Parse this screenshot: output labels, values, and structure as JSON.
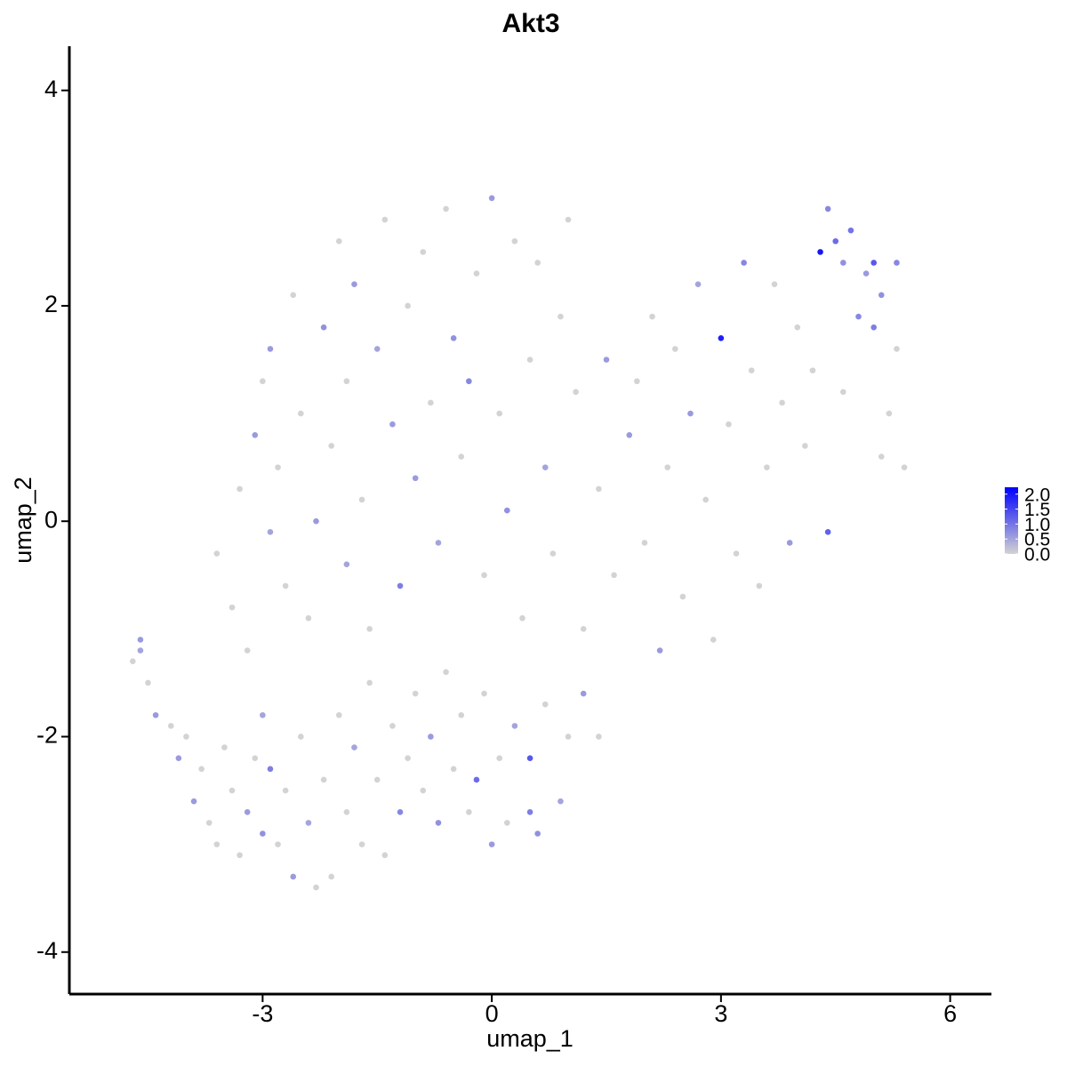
{
  "chart_data": {
    "type": "scatter",
    "title": "Akt3",
    "x_label": "umap_1",
    "y_label": "umap_2",
    "xlim": [
      -5.53,
      6.54
    ],
    "ylim": [
      -4.39,
      4.41
    ],
    "xticks": [
      -3,
      0,
      3,
      6
    ],
    "yticks": [
      -4,
      -2,
      0,
      2,
      4
    ],
    "color_low": "#d3d3d3",
    "color_high": "#0000ff",
    "colorlim": [
      0,
      2.23
    ],
    "colorbar_ticks": [
      {
        "value": 0,
        "label": "0.0"
      },
      0.5,
      {
        "value": 1,
        "label": "1.0"
      },
      1.5,
      {
        "value": 2,
        "label": "2.0"
      }
    ],
    "x": [
      -4.7,
      -4.6,
      -4.6,
      -4.5,
      -4.4,
      -4.2,
      -4.1,
      -4.0,
      -3.9,
      -3.8,
      -3.7,
      -3.6,
      -3.5,
      -3.4,
      -3.3,
      -3.2,
      -3.1,
      -3.0,
      -3.0,
      -2.9,
      -2.8,
      -2.7,
      -2.6,
      -2.5,
      -2.4,
      -2.3,
      -2.2,
      -2.1,
      -2.0,
      -1.9,
      -1.8,
      -1.7,
      -1.6,
      -1.5,
      -1.4,
      -1.3,
      -1.2,
      -1.1,
      -1.0,
      -0.9,
      -0.8,
      -0.7,
      -0.6,
      -0.5,
      -0.4,
      -0.3,
      -0.2,
      -0.1,
      0.0,
      0.1,
      0.2,
      0.3,
      0.5,
      0.5,
      0.6,
      0.7,
      0.9,
      1.0,
      1.2,
      1.4,
      -3.6,
      -3.4,
      -3.3,
      -3.2,
      -3.1,
      -3.0,
      -2.9,
      -2.9,
      -2.8,
      -2.7,
      -2.6,
      -2.5,
      -2.4,
      -2.3,
      -2.2,
      -2.1,
      -2.0,
      -1.9,
      -1.9,
      -1.8,
      -1.7,
      -1.6,
      -1.5,
      -1.4,
      -1.3,
      -1.2,
      -1.1,
      -1.0,
      -0.9,
      -0.8,
      -0.7,
      -0.6,
      -0.5,
      -0.4,
      -0.3,
      -0.2,
      -0.1,
      0.0,
      0.1,
      0.2,
      0.3,
      0.4,
      0.5,
      0.6,
      0.7,
      0.8,
      0.9,
      1.0,
      1.1,
      1.2,
      1.4,
      1.5,
      1.6,
      1.8,
      1.9,
      2.0,
      2.1,
      2.2,
      2.3,
      2.4,
      2.5,
      2.6,
      2.7,
      2.8,
      2.9,
      3.0,
      3.1,
      3.2,
      3.3,
      3.4,
      3.5,
      3.6,
      3.7,
      3.8,
      3.9,
      4.0,
      4.1,
      4.2,
      4.3,
      4.4,
      4.4,
      4.5,
      4.6,
      4.6,
      4.7,
      4.8,
      4.9,
      5.0,
      5.0,
      5.1,
      5.1,
      5.2,
      5.3,
      5.3,
      5.4
    ],
    "values": [
      -1.3,
      -1.1,
      -1.2,
      -1.5,
      -1.8,
      -1.9,
      -2.2,
      -2.0,
      -2.6,
      -2.3,
      -2.8,
      -3.0,
      -2.1,
      -2.5,
      -3.1,
      -2.7,
      -2.2,
      -2.9,
      -1.8,
      -2.3,
      -3.0,
      -2.5,
      -3.3,
      -2.0,
      -2.8,
      -3.4,
      -2.4,
      -3.3,
      -1.8,
      -2.7,
      -2.1,
      -3.0,
      -1.5,
      -2.4,
      -3.1,
      -1.9,
      -2.7,
      -2.2,
      -1.6,
      -2.5,
      -2.0,
      -2.8,
      -1.4,
      -2.3,
      -1.8,
      -2.7,
      -2.4,
      -1.6,
      -3.0,
      -2.2,
      -2.8,
      -1.9,
      -2.2,
      -2.7,
      -2.9,
      -1.7,
      -2.6,
      -2.0,
      -1.6,
      -2.0,
      -0.3,
      -0.8,
      0.3,
      -1.2,
      0.8,
      1.3,
      -0.1,
      1.6,
      0.5,
      -0.6,
      2.1,
      1.0,
      -0.9,
      0.0,
      1.8,
      0.7,
      2.6,
      -0.4,
      1.3,
      2.2,
      0.2,
      -1.0,
      1.6,
      2.8,
      0.9,
      -0.6,
      2.0,
      0.4,
      2.5,
      1.1,
      -0.2,
      2.9,
      1.7,
      0.6,
      1.3,
      2.3,
      -0.5,
      3.0,
      1.0,
      0.1,
      2.6,
      -0.9,
      1.5,
      2.4,
      0.5,
      -0.3,
      1.9,
      2.8,
      1.2,
      -1.0,
      0.3,
      1.5,
      -0.5,
      0.8,
      1.3,
      -0.2,
      1.9,
      -1.2,
      0.5,
      1.6,
      -0.7,
      1.0,
      2.2,
      0.2,
      -1.1,
      1.7,
      0.9,
      -0.3,
      2.4,
      1.4,
      -0.6,
      0.5,
      2.2,
      1.1,
      -0.2,
      1.8,
      0.7,
      1.4,
      2.5,
      -0.1,
      2.9,
      2.6,
      1.2,
      2.4,
      2.7,
      1.9,
      2.3,
      2.4,
      1.8,
      0.6,
      2.1,
      1.0,
      2.4,
      1.6,
      0.5
    ],
    "expression": [
      0,
      0.6,
      0.5,
      0,
      0.6,
      0,
      0.6,
      0,
      0.6,
      0,
      0,
      0,
      0,
      0,
      0,
      0.6,
      0,
      0.7,
      0.5,
      0.9,
      0,
      0,
      0.6,
      0,
      0.5,
      0,
      0,
      0,
      0,
      0,
      0.5,
      0,
      0,
      0,
      0,
      0,
      0.8,
      0,
      0,
      0,
      0.6,
      0.7,
      0,
      0,
      0,
      0,
      1.1,
      0,
      0.6,
      0,
      0,
      0.5,
      1.3,
      0.9,
      0.7,
      0,
      0.5,
      0,
      0.6,
      0,
      0,
      0,
      0,
      0,
      0.6,
      0,
      0.5,
      0.6,
      0,
      0,
      0,
      0,
      0,
      0.6,
      0.7,
      0,
      0,
      0.5,
      0,
      0.6,
      0,
      0,
      0.5,
      0,
      0.6,
      0.9,
      0,
      0.6,
      0,
      0,
      0.5,
      0,
      0.7,
      0,
      0.8,
      0,
      0,
      0.6,
      0,
      0.7,
      0,
      0,
      0,
      0,
      0.5,
      0,
      0,
      0,
      0,
      0,
      0,
      0.6,
      0,
      0.6,
      0,
      0,
      0,
      0.6,
      0,
      0,
      0,
      0.6,
      0.5,
      0,
      0,
      1.9,
      0,
      0,
      0.8,
      0,
      0,
      0,
      0,
      0,
      0.6,
      0,
      0,
      0,
      2.0,
      1.2,
      0.8,
      1.1,
      0,
      0.7,
      1.0,
      0.8,
      0.6,
      1.3,
      0.9,
      0,
      0.7,
      0,
      0.8,
      0,
      0
    ]
  }
}
